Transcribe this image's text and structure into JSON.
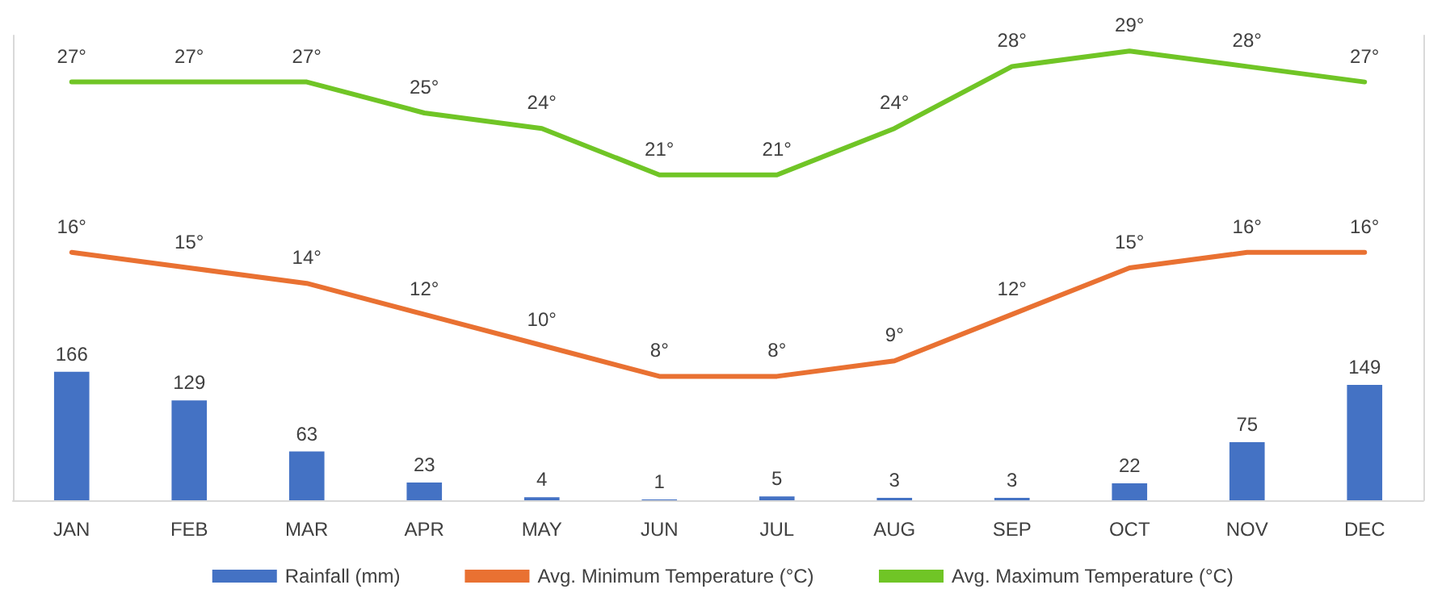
{
  "chart_data": {
    "type": "bar",
    "categories": [
      "JAN",
      "FEB",
      "MAR",
      "APR",
      "MAY",
      "JUN",
      "JUL",
      "AUG",
      "SEP",
      "OCT",
      "NOV",
      "DEC"
    ],
    "series": [
      {
        "name": "Rainfall (mm)",
        "color": "#4472c4",
        "values": [
          166,
          129,
          63,
          23,
          4,
          1,
          5,
          3,
          3,
          22,
          75,
          149
        ],
        "value_labels": [
          "166",
          "129",
          "63",
          "23",
          "4",
          "1",
          "5",
          "3",
          "3",
          "22",
          "75",
          "149"
        ]
      },
      {
        "name": "Avg. Minimum Temperature (°C)",
        "type": "line",
        "axis": "y2",
        "color": "#e97132",
        "values": [
          16,
          15,
          14,
          12,
          10,
          8,
          8,
          9,
          12,
          15,
          16,
          16
        ],
        "value_labels": [
          "16°",
          "15°",
          "14°",
          "12°",
          "10°",
          "8°",
          "8°",
          "9°",
          "12°",
          "15°",
          "16°",
          "16°"
        ]
      },
      {
        "name": "Avg. Maximum Temperature (°C)",
        "type": "line",
        "axis": "y2",
        "color": "#70c526",
        "values": [
          27,
          27,
          27,
          25,
          24,
          21,
          21,
          24,
          28,
          29,
          28,
          27
        ],
        "value_labels": [
          "27°",
          "27°",
          "27°",
          "25°",
          "24°",
          "21°",
          "21°",
          "24°",
          "28°",
          "29°",
          "28°",
          "27°"
        ]
      }
    ],
    "ylim": [
      0,
      600
    ],
    "y2lim": [
      0,
      30
    ],
    "tick_labels": "x",
    "legend": "bottom",
    "marker": "none",
    "line_style": "solid"
  }
}
